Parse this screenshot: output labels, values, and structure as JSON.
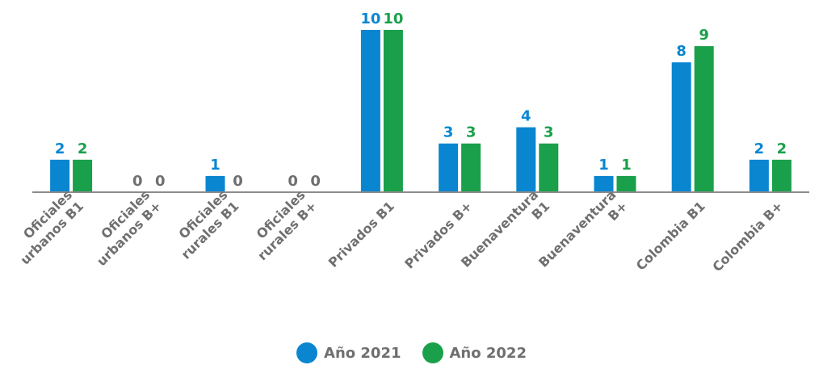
{
  "chart_data": {
    "type": "bar",
    "categories": [
      [
        "Oficiales",
        "urbanos B1"
      ],
      [
        "Oficiales",
        "urbanos B+"
      ],
      [
        "Oficiales",
        "rurales B1"
      ],
      [
        "Oficiales",
        "rurales B+"
      ],
      [
        "Privados B1"
      ],
      [
        "Privados B+"
      ],
      [
        "Buenaventura",
        "B1"
      ],
      [
        "Buenaventura",
        "B+"
      ],
      [
        "Colombia B1"
      ],
      [
        "Colombia B+"
      ]
    ],
    "series": [
      {
        "name": "Año 2021",
        "color": "#0a86d1",
        "values": [
          2,
          0,
          1,
          0,
          10,
          3,
          4,
          1,
          8,
          2
        ]
      },
      {
        "name": "Año 2022",
        "color": "#1aa04a",
        "values": [
          2,
          0,
          0,
          0,
          10,
          3,
          3,
          1,
          9,
          2
        ]
      }
    ],
    "zero_label_color": "#6f6f6f",
    "category_label_color": "#6f6f6f",
    "axis_color": "#8c8c8c",
    "ylim": [
      0,
      10
    ],
    "grid": false,
    "legend_position": "bottom-center"
  }
}
